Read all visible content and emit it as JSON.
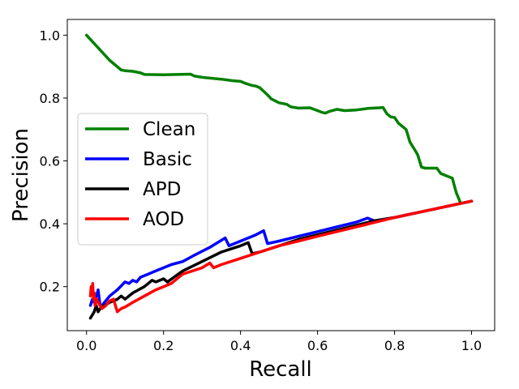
{
  "chart_data": {
    "type": "line",
    "title": "",
    "xlabel": "Recall",
    "ylabel": "Precision",
    "xlim": [
      -0.05,
      1.06
    ],
    "ylim": [
      0.06,
      1.05
    ],
    "xticks": [
      0.0,
      0.2,
      0.4,
      0.6,
      0.8,
      1.0
    ],
    "xtick_labels": [
      "0.0",
      "0.2",
      "0.4",
      "0.6",
      "0.8",
      "1.0"
    ],
    "yticks": [
      0.2,
      0.4,
      0.6,
      0.8,
      1.0
    ],
    "ytick_labels": [
      "0.2",
      "0.4",
      "0.6",
      "0.8",
      "1.0"
    ],
    "grid": false,
    "legend_position": "center-left",
    "series": [
      {
        "name": "Clean",
        "color": "#008000",
        "x": [
          0.0,
          0.03,
          0.06,
          0.09,
          0.1,
          0.12,
          0.14,
          0.15,
          0.2,
          0.27,
          0.28,
          0.3,
          0.35,
          0.38,
          0.4,
          0.41,
          0.43,
          0.44,
          0.45,
          0.47,
          0.48,
          0.5,
          0.52,
          0.53,
          0.55,
          0.58,
          0.6,
          0.61,
          0.62,
          0.63,
          0.65,
          0.67,
          0.7,
          0.72,
          0.73,
          0.76,
          0.77,
          0.78,
          0.79,
          0.8,
          0.81,
          0.82,
          0.83,
          0.84,
          0.85,
          0.86,
          0.87,
          0.88,
          0.91,
          0.92,
          0.95,
          0.96,
          0.97
        ],
        "y": [
          1.0,
          0.96,
          0.92,
          0.889,
          0.887,
          0.885,
          0.88,
          0.875,
          0.874,
          0.876,
          0.87,
          0.866,
          0.86,
          0.855,
          0.853,
          0.848,
          0.84,
          0.838,
          0.833,
          0.81,
          0.797,
          0.785,
          0.78,
          0.772,
          0.768,
          0.769,
          0.76,
          0.755,
          0.752,
          0.757,
          0.764,
          0.76,
          0.762,
          0.765,
          0.767,
          0.769,
          0.77,
          0.75,
          0.74,
          0.738,
          0.72,
          0.71,
          0.7,
          0.66,
          0.64,
          0.62,
          0.58,
          0.577,
          0.577,
          0.56,
          0.545,
          0.5,
          0.47
        ]
      },
      {
        "name": "Basic",
        "color": "#0000ff",
        "x": [
          0.01,
          0.015,
          0.02,
          0.025,
          0.028,
          0.03,
          0.035,
          0.04,
          0.06,
          0.08,
          0.1,
          0.11,
          0.12,
          0.13,
          0.14,
          0.16,
          0.18,
          0.2,
          0.22,
          0.25,
          0.28,
          0.32,
          0.36,
          0.37,
          0.4,
          0.44,
          0.46,
          0.47,
          0.5,
          0.55,
          0.6,
          0.65,
          0.7,
          0.73,
          0.75,
          0.8,
          0.85,
          0.9,
          0.95,
          1.0
        ],
        "y": [
          0.14,
          0.16,
          0.15,
          0.17,
          0.18,
          0.19,
          0.14,
          0.14,
          0.17,
          0.19,
          0.215,
          0.21,
          0.22,
          0.215,
          0.23,
          0.24,
          0.25,
          0.26,
          0.27,
          0.28,
          0.3,
          0.325,
          0.355,
          0.33,
          0.345,
          0.365,
          0.378,
          0.337,
          0.345,
          0.36,
          0.375,
          0.39,
          0.405,
          0.418,
          0.408,
          0.42,
          0.433,
          0.446,
          0.459,
          0.472
        ]
      },
      {
        "name": "APD",
        "color": "#000000",
        "x": [
          0.01,
          0.015,
          0.02,
          0.025,
          0.03,
          0.035,
          0.04,
          0.06,
          0.08,
          0.09,
          0.1,
          0.12,
          0.15,
          0.17,
          0.18,
          0.2,
          0.21,
          0.25,
          0.3,
          0.35,
          0.4,
          0.42,
          0.43,
          0.45,
          0.5,
          0.55,
          0.6,
          0.65,
          0.7,
          0.75,
          0.8,
          0.85,
          0.9,
          0.95,
          1.0
        ],
        "y": [
          0.1,
          0.11,
          0.12,
          0.14,
          0.12,
          0.13,
          0.135,
          0.15,
          0.16,
          0.17,
          0.16,
          0.18,
          0.2,
          0.22,
          0.215,
          0.225,
          0.215,
          0.25,
          0.28,
          0.31,
          0.33,
          0.34,
          0.305,
          0.31,
          0.33,
          0.35,
          0.365,
          0.38,
          0.395,
          0.41,
          0.42,
          0.433,
          0.446,
          0.459,
          0.472
        ]
      },
      {
        "name": "AOD",
        "color": "#ff0000",
        "x": [
          0.01,
          0.012,
          0.014,
          0.016,
          0.018,
          0.02,
          0.022,
          0.024,
          0.026,
          0.03,
          0.035,
          0.04,
          0.05,
          0.06,
          0.07,
          0.075,
          0.08,
          0.09,
          0.1,
          0.12,
          0.15,
          0.18,
          0.2,
          0.22,
          0.25,
          0.3,
          0.32,
          0.33,
          0.35,
          0.4,
          0.45,
          0.5,
          0.55,
          0.6,
          0.65,
          0.7,
          0.75,
          0.8,
          0.85,
          0.9,
          0.95,
          1.0
        ],
        "y": [
          0.17,
          0.2,
          0.18,
          0.21,
          0.16,
          0.18,
          0.14,
          0.15,
          0.16,
          0.15,
          0.14,
          0.13,
          0.14,
          0.155,
          0.16,
          0.14,
          0.12,
          0.13,
          0.135,
          0.15,
          0.17,
          0.19,
          0.2,
          0.21,
          0.24,
          0.26,
          0.275,
          0.26,
          0.27,
          0.29,
          0.31,
          0.33,
          0.345,
          0.36,
          0.375,
          0.39,
          0.405,
          0.42,
          0.433,
          0.446,
          0.459,
          0.472
        ]
      }
    ]
  }
}
